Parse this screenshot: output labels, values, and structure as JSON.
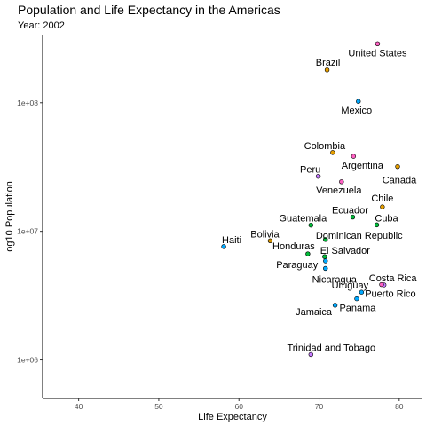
{
  "colors": {
    "north": "#F8766D",
    "central": "#7CAE00",
    "caribbean": "#00BFC4",
    "south": "#C77CFF",
    "orange": "#E69F00",
    "green": "#00BA38",
    "blue": "#619CFF",
    "pink": "#FF61C3",
    "teal": "#00A9FF",
    "gold": "#D39200"
  },
  "chart_data": {
    "type": "scatter",
    "title": "Population and Life Expectancy in the Americas",
    "subtitle": "Year: 2002",
    "xlabel": "Life Expectancy",
    "ylabel": "Log10 Population",
    "x_ticks": [
      "40",
      "50",
      "60",
      "70",
      "80"
    ],
    "x_tick_values": [
      40,
      50,
      60,
      70,
      80
    ],
    "y_ticks": [
      "1e+06",
      "1e+07",
      "1e+08"
    ],
    "y_tick_values": [
      1000000,
      10000000,
      100000000
    ],
    "xlim": [
      35.5,
      82.9
    ],
    "ylim_log10": [
      5.7,
      8.53
    ],
    "y_scale": "log10",
    "grid": false,
    "legend": "none",
    "points": [
      {
        "country": "United States",
        "x": 77.3,
        "y": 287675526,
        "color": "#FF61C3",
        "label_anchor": "middle",
        "label_dx": 0,
        "label_dy": 14
      },
      {
        "country": "Brazil",
        "x": 71.0,
        "y": 179914212,
        "color": "#E69F00",
        "label_anchor": "middle",
        "label_dx": 1,
        "label_dy": -5
      },
      {
        "country": "Mexico",
        "x": 74.9,
        "y": 102479927,
        "color": "#00A9FF",
        "label_anchor": "middle",
        "label_dx": -2,
        "label_dy": 14
      },
      {
        "country": "Colombia",
        "x": 71.7,
        "y": 41008227,
        "color": "#E69F00",
        "label_anchor": "middle",
        "label_dx": -9,
        "label_dy": -4
      },
      {
        "country": "Argentina",
        "x": 74.3,
        "y": 38331121,
        "color": "#FF61C3",
        "label_anchor": "middle",
        "label_dx": 10,
        "label_dy": 14
      },
      {
        "country": "Canada",
        "x": 79.8,
        "y": 31902268,
        "color": "#E69F00",
        "label_anchor": "middle",
        "label_dx": 2,
        "label_dy": 19
      },
      {
        "country": "Peru",
        "x": 69.9,
        "y": 26769436,
        "color": "#C77CFF",
        "label_anchor": "middle",
        "label_dx": -9,
        "label_dy": -4
      },
      {
        "country": "Venezuela",
        "x": 72.8,
        "y": 24287670,
        "color": "#FF61C3",
        "label_anchor": "middle",
        "label_dx": -3,
        "label_dy": 13
      },
      {
        "country": "Chile",
        "x": 77.9,
        "y": 15497046,
        "color": "#E69F00",
        "label_anchor": "middle",
        "label_dx": 0,
        "label_dy": -6
      },
      {
        "country": "Ecuador",
        "x": 74.2,
        "y": 12921234,
        "color": "#00BA38",
        "label_anchor": "middle",
        "label_dx": -3,
        "label_dy": -4
      },
      {
        "country": "Cuba",
        "x": 77.2,
        "y": 11226999,
        "color": "#00BA38",
        "label_anchor": "middle",
        "label_dx": 11,
        "label_dy": -4
      },
      {
        "country": "Guatemala",
        "x": 68.98,
        "y": 11178650,
        "color": "#00BA38",
        "label_anchor": "middle",
        "label_dx": -9,
        "label_dy": -4
      },
      {
        "country": "Dominican Republic",
        "x": 70.8,
        "y": 8650322,
        "color": "#00BA38",
        "label_anchor": "middle",
        "label_dx": 38,
        "label_dy": -1
      },
      {
        "country": "Haiti",
        "x": 58.1,
        "y": 7607651,
        "color": "#00A9FF",
        "label_anchor": "middle",
        "label_dx": 9,
        "label_dy": -4
      },
      {
        "country": "Bolivia",
        "x": 63.9,
        "y": 8445134,
        "color": "#D39200",
        "label_anchor": "middle",
        "label_dx": -6,
        "label_dy": -4
      },
      {
        "country": "Honduras",
        "x": 68.6,
        "y": 6677328,
        "color": "#00BA38",
        "label_anchor": "middle",
        "label_dx": -16,
        "label_dy": -5
      },
      {
        "country": "El Salvador",
        "x": 70.7,
        "y": 6353681,
        "color": "#00BA38",
        "label_anchor": "middle",
        "label_dx": 23,
        "label_dy": -3
      },
      {
        "country": "Paraguay",
        "x": 70.8,
        "y": 5884491,
        "color": "#00A9FF",
        "label_anchor": "middle",
        "label_dx": -32,
        "label_dy": 8
      },
      {
        "country": "Nicaragua",
        "x": 70.8,
        "y": 5146848,
        "color": "#00A9FF",
        "label_anchor": "middle",
        "label_dx": 10,
        "label_dy": 16
      },
      {
        "country": "Costa Rica",
        "x": 78.1,
        "y": 3834934,
        "color": "#C77CFF",
        "label_anchor": "middle",
        "label_dx": 10,
        "label_dy": -4
      },
      {
        "country": "Puerto Rico",
        "x": 77.8,
        "y": 3859606,
        "color": "#FF61C3",
        "label_anchor": "middle",
        "label_dx": 10,
        "label_dy": 14
      },
      {
        "country": "Uruguay",
        "x": 75.3,
        "y": 3363085,
        "color": "#00A9FF",
        "label_anchor": "middle",
        "label_dx": -13,
        "label_dy": -4
      },
      {
        "country": "Panama",
        "x": 74.7,
        "y": 2990875,
        "color": "#00A9FF",
        "label_anchor": "middle",
        "label_dx": 1,
        "label_dy": 14
      },
      {
        "country": "Jamaica",
        "x": 72.0,
        "y": 2664659,
        "color": "#00A9FF",
        "label_anchor": "middle",
        "label_dx": -24,
        "label_dy": 11
      },
      {
        "country": "Trinidad and Tobago",
        "x": 68.98,
        "y": 1101832,
        "color": "#C77CFF",
        "label_anchor": "middle",
        "label_dx": 23,
        "label_dy": -4
      }
    ]
  }
}
